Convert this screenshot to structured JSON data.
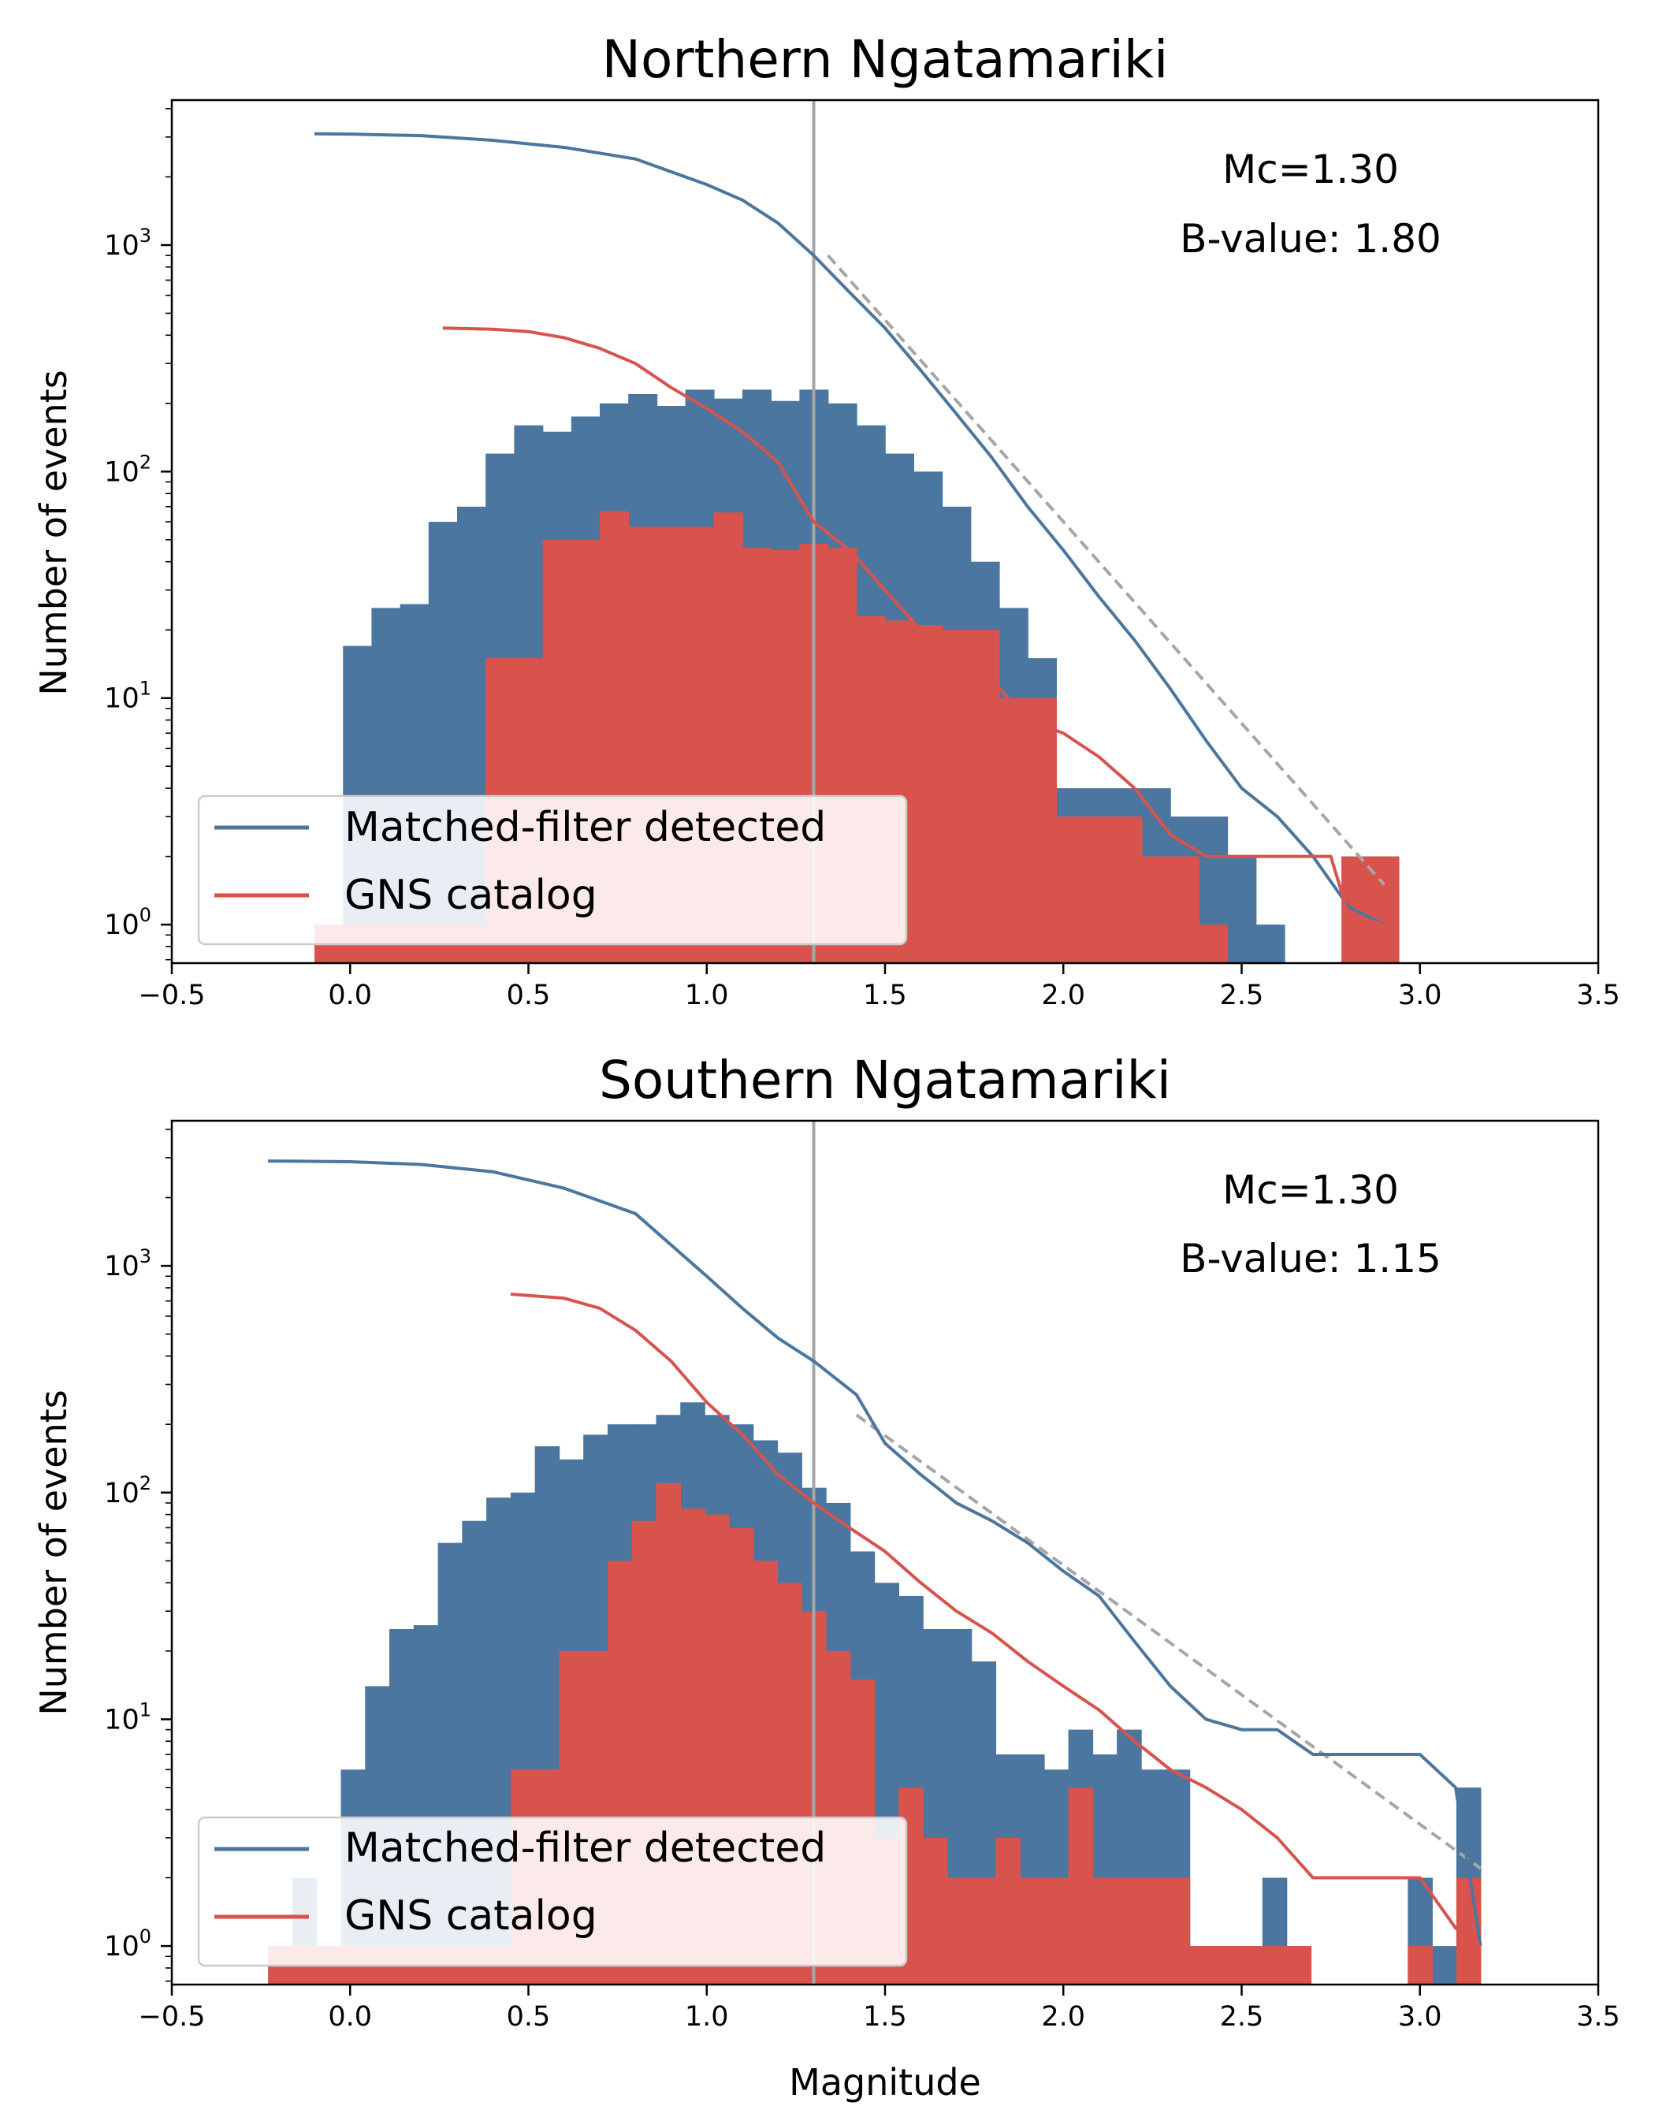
{
  "figure": {
    "colors": {
      "matched": "#4a76a0",
      "gns": "#d9534d",
      "mc_line": "#a6a6a6",
      "fit_line": "#a6a6a6"
    }
  },
  "chart_data": [
    {
      "type": "bar",
      "title": "Northern Ngatamariki",
      "xlabel": "",
      "ylabel": "Number of events",
      "xlim": [
        -0.5,
        3.5
      ],
      "ylim_log10": [
        -0.17,
        3.64
      ],
      "y_scale": "log",
      "xticks": [
        "−0.5",
        "0.0",
        "0.5",
        "1.0",
        "1.5",
        "2.0",
        "2.5",
        "3.0",
        "3.5"
      ],
      "yticks": [
        {
          "base": "10",
          "exp": "0"
        },
        {
          "base": "10",
          "exp": "1"
        },
        {
          "base": "10",
          "exp": "2"
        },
        {
          "base": "10",
          "exp": "3"
        }
      ],
      "annotations": [
        "Mc=1.30",
        "B-value: 1.80"
      ],
      "mc": 1.3,
      "legend": {
        "position": "lower-left",
        "entries": [
          "Matched-filter detected",
          "GNS catalog"
        ]
      },
      "hist_bin_width": 0.08,
      "hist_matched": [
        [
          -0.1,
          1
        ],
        [
          -0.02,
          17
        ],
        [
          0.06,
          25
        ],
        [
          0.14,
          26
        ],
        [
          0.22,
          60
        ],
        [
          0.3,
          70
        ],
        [
          0.38,
          120
        ],
        [
          0.46,
          160
        ],
        [
          0.54,
          150
        ],
        [
          0.62,
          175
        ],
        [
          0.7,
          200
        ],
        [
          0.78,
          220
        ],
        [
          0.86,
          195
        ],
        [
          0.94,
          230
        ],
        [
          1.02,
          210
        ],
        [
          1.1,
          230
        ],
        [
          1.18,
          205
        ],
        [
          1.26,
          230
        ],
        [
          1.34,
          200
        ],
        [
          1.42,
          160
        ],
        [
          1.5,
          120
        ],
        [
          1.58,
          100
        ],
        [
          1.66,
          70
        ],
        [
          1.74,
          40
        ],
        [
          1.82,
          25
        ],
        [
          1.9,
          15
        ],
        [
          1.98,
          4
        ],
        [
          2.06,
          4
        ],
        [
          2.14,
          4
        ],
        [
          2.22,
          4
        ],
        [
          2.3,
          3
        ],
        [
          2.38,
          3
        ],
        [
          2.46,
          2
        ],
        [
          2.54,
          1
        ],
        [
          2.62,
          0
        ],
        [
          2.7,
          0
        ],
        [
          2.78,
          2
        ],
        [
          2.86,
          2
        ]
      ],
      "hist_gns": [
        [
          -0.1,
          1
        ],
        [
          -0.02,
          1
        ],
        [
          0.06,
          1
        ],
        [
          0.14,
          1
        ],
        [
          0.22,
          1
        ],
        [
          0.3,
          1
        ],
        [
          0.38,
          15
        ],
        [
          0.46,
          15
        ],
        [
          0.54,
          50
        ],
        [
          0.62,
          50
        ],
        [
          0.7,
          67
        ],
        [
          0.78,
          57
        ],
        [
          0.86,
          57
        ],
        [
          0.94,
          57
        ],
        [
          1.02,
          66
        ],
        [
          1.1,
          46
        ],
        [
          1.18,
          45
        ],
        [
          1.26,
          48
        ],
        [
          1.34,
          46
        ],
        [
          1.42,
          23
        ],
        [
          1.5,
          22
        ],
        [
          1.58,
          21
        ],
        [
          1.66,
          20
        ],
        [
          1.74,
          20
        ],
        [
          1.82,
          10
        ],
        [
          1.9,
          10
        ],
        [
          1.98,
          3
        ],
        [
          2.06,
          3
        ],
        [
          2.14,
          3
        ],
        [
          2.22,
          2
        ],
        [
          2.3,
          2
        ],
        [
          2.38,
          1
        ],
        [
          2.46,
          0
        ],
        [
          2.54,
          0
        ],
        [
          2.62,
          0
        ],
        [
          2.7,
          0
        ],
        [
          2.78,
          2
        ],
        [
          2.86,
          2
        ]
      ],
      "series": [
        {
          "name": "Matched-filter detected",
          "x": [
            -0.1,
            0,
            0.2,
            0.4,
            0.6,
            0.8,
            1,
            1.1,
            1.2,
            1.3,
            1.4,
            1.5,
            1.6,
            1.7,
            1.8,
            1.9,
            2,
            2.1,
            2.2,
            2.3,
            2.4,
            2.5,
            2.6,
            2.7,
            2.8,
            2.9
          ],
          "y": [
            3100,
            3090,
            3040,
            2900,
            2700,
            2400,
            1850,
            1580,
            1250,
            900,
            620,
            430,
            280,
            180,
            115,
            70,
            45,
            28,
            18,
            11,
            6.5,
            4,
            3,
            2,
            1.2,
            1
          ]
        },
        {
          "name": "GNS catalog",
          "x": [
            0.26,
            0.4,
            0.5,
            0.6,
            0.7,
            0.8,
            0.9,
            1,
            1.1,
            1.2,
            1.3,
            1.4,
            1.5,
            1.6,
            1.7,
            1.8,
            1.9,
            2,
            2.1,
            2.2,
            2.3,
            2.4,
            2.5,
            2.6,
            2.7,
            2.75,
            2.8,
            2.9
          ],
          "y": [
            430,
            425,
            415,
            390,
            350,
            300,
            235,
            190,
            150,
            110,
            60,
            45,
            30,
            20,
            14,
            12,
            8,
            7,
            5.5,
            4,
            2.5,
            2,
            2,
            2,
            2,
            2,
            1.1,
            1
          ]
        },
        {
          "name": "",
          "x": [
            1.34,
            2.9
          ],
          "y": [
            900,
            1.5
          ]
        }
      ]
    },
    {
      "type": "bar",
      "title": "Southern Ngatamariki",
      "xlabel": "Magnitude",
      "ylabel": "Number of events",
      "xlim": [
        -0.5,
        3.5
      ],
      "ylim_log10": [
        -0.17,
        3.64
      ],
      "y_scale": "log",
      "xticks": [
        "−0.5",
        "0.0",
        "0.5",
        "1.0",
        "1.5",
        "2.0",
        "2.5",
        "3.0",
        "3.5"
      ],
      "yticks": [
        {
          "base": "10",
          "exp": "0"
        },
        {
          "base": "10",
          "exp": "1"
        },
        {
          "base": "10",
          "exp": "2"
        },
        {
          "base": "10",
          "exp": "3"
        }
      ],
      "annotations": [
        "Mc=1.30",
        "B-value: 1.15"
      ],
      "mc": 1.3,
      "legend": {
        "position": "lower-left",
        "entries": [
          "Matched-filter detected",
          "GNS catalog"
        ]
      },
      "hist_bin_width": 0.068,
      "hist_matched": [
        [
          -0.23,
          1
        ],
        [
          -0.162,
          2
        ],
        [
          -0.094,
          1
        ],
        [
          -0.026,
          6
        ],
        [
          0.042,
          14
        ],
        [
          0.11,
          25
        ],
        [
          0.178,
          26
        ],
        [
          0.246,
          60
        ],
        [
          0.314,
          75
        ],
        [
          0.382,
          95
        ],
        [
          0.45,
          100
        ],
        [
          0.518,
          160
        ],
        [
          0.586,
          140
        ],
        [
          0.654,
          180
        ],
        [
          0.722,
          200
        ],
        [
          0.79,
          200
        ],
        [
          0.858,
          220
        ],
        [
          0.926,
          250
        ],
        [
          0.994,
          220
        ],
        [
          1.062,
          200
        ],
        [
          1.13,
          170
        ],
        [
          1.198,
          150
        ],
        [
          1.266,
          105
        ],
        [
          1.334,
          90
        ],
        [
          1.402,
          55
        ],
        [
          1.47,
          40
        ],
        [
          1.538,
          35
        ],
        [
          1.606,
          25
        ],
        [
          1.674,
          25
        ],
        [
          1.742,
          18
        ],
        [
          1.81,
          7
        ],
        [
          1.878,
          7
        ],
        [
          1.946,
          6
        ],
        [
          2.014,
          9
        ],
        [
          2.082,
          7
        ],
        [
          2.15,
          9
        ],
        [
          2.218,
          6
        ],
        [
          2.286,
          6
        ],
        [
          2.354,
          1
        ],
        [
          2.422,
          1
        ],
        [
          2.49,
          1
        ],
        [
          2.558,
          2
        ],
        [
          2.626,
          1
        ],
        [
          2.694,
          0
        ],
        [
          2.762,
          0
        ],
        [
          2.83,
          0
        ],
        [
          2.898,
          0
        ],
        [
          2.966,
          2
        ],
        [
          3.034,
          1
        ],
        [
          3.102,
          5
        ]
      ],
      "hist_gns": [
        [
          -0.23,
          1
        ],
        [
          -0.162,
          1
        ],
        [
          -0.094,
          1
        ],
        [
          -0.026,
          1
        ],
        [
          0.042,
          1
        ],
        [
          0.11,
          1
        ],
        [
          0.178,
          1
        ],
        [
          0.246,
          1
        ],
        [
          0.314,
          1
        ],
        [
          0.382,
          1
        ],
        [
          0.45,
          6
        ],
        [
          0.518,
          6
        ],
        [
          0.586,
          20
        ],
        [
          0.654,
          20
        ],
        [
          0.722,
          50
        ],
        [
          0.79,
          75
        ],
        [
          0.858,
          110
        ],
        [
          0.926,
          85
        ],
        [
          0.994,
          80
        ],
        [
          1.062,
          70
        ],
        [
          1.13,
          50
        ],
        [
          1.198,
          40
        ],
        [
          1.266,
          30
        ],
        [
          1.334,
          20
        ],
        [
          1.402,
          15
        ],
        [
          1.47,
          3
        ],
        [
          1.538,
          5
        ],
        [
          1.606,
          3
        ],
        [
          1.674,
          2
        ],
        [
          1.742,
          2
        ],
        [
          1.81,
          3
        ],
        [
          1.878,
          2
        ],
        [
          1.946,
          2
        ],
        [
          2.014,
          5
        ],
        [
          2.082,
          2
        ],
        [
          2.15,
          2
        ],
        [
          2.218,
          2
        ],
        [
          2.286,
          2
        ],
        [
          2.354,
          1
        ],
        [
          2.422,
          1
        ],
        [
          2.49,
          1
        ],
        [
          2.558,
          1
        ],
        [
          2.626,
          1
        ],
        [
          2.694,
          0
        ],
        [
          2.762,
          0
        ],
        [
          2.83,
          0
        ],
        [
          2.898,
          0
        ],
        [
          2.966,
          1
        ],
        [
          3.034,
          0
        ],
        [
          3.102,
          2
        ]
      ],
      "series": [
        {
          "name": "Matched-filter detected",
          "x": [
            -0.23,
            0,
            0.2,
            0.4,
            0.6,
            0.8,
            1,
            1.1,
            1.2,
            1.3,
            1.42,
            1.5,
            1.6,
            1.7,
            1.8,
            1.9,
            2,
            2.1,
            2.2,
            2.3,
            2.4,
            2.5,
            2.6,
            2.7,
            2.8,
            2.9,
            3,
            3.1,
            3.17
          ],
          "y": [
            2900,
            2880,
            2800,
            2600,
            2200,
            1700,
            900,
            650,
            480,
            380,
            270,
            165,
            120,
            90,
            75,
            60,
            45,
            35,
            22,
            14,
            10,
            9,
            9,
            7,
            7,
            7,
            7,
            5,
            1
          ]
        },
        {
          "name": "GNS catalog",
          "x": [
            0.45,
            0.6,
            0.7,
            0.8,
            0.9,
            1,
            1.1,
            1.2,
            1.3,
            1.4,
            1.5,
            1.6,
            1.7,
            1.8,
            1.9,
            2,
            2.1,
            2.2,
            2.3,
            2.4,
            2.5,
            2.6,
            2.7,
            2.8,
            2.9,
            3,
            3.1,
            3.17
          ],
          "y": [
            750,
            720,
            650,
            520,
            380,
            250,
            180,
            120,
            90,
            70,
            55,
            40,
            30,
            24,
            18,
            14,
            11,
            8,
            6,
            5,
            4,
            3,
            2,
            2,
            2,
            2,
            1.2,
            1
          ]
        },
        {
          "name": "",
          "x": [
            1.42,
            3.17
          ],
          "y": [
            220,
            2.2
          ]
        }
      ]
    }
  ]
}
